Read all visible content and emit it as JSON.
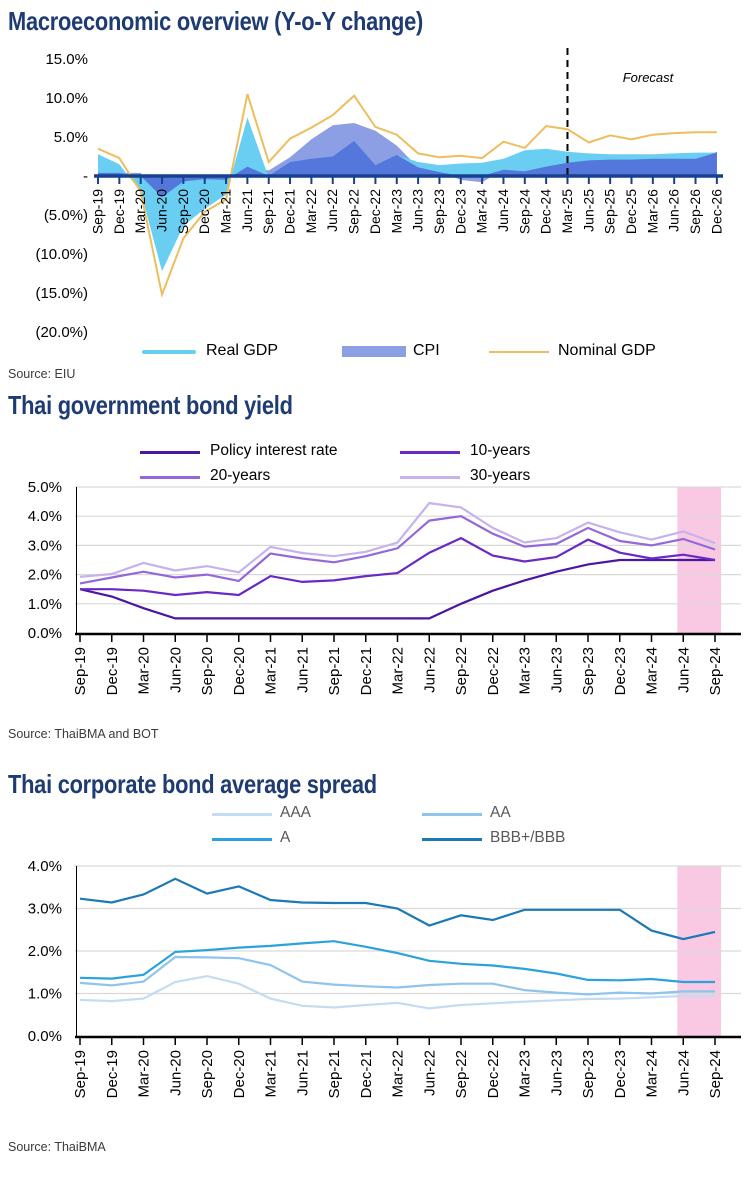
{
  "charts": [
    {
      "title": "Macroeconomic overview (Y-o-Y change)",
      "source": "Source: EIU",
      "forecast_label": "Forecast",
      "forecast_at": "Mar-25",
      "legend": [
        {
          "label": "Real GDP"
        },
        {
          "label": "CPI"
        },
        {
          "label": "Nominal GDP"
        }
      ]
    },
    {
      "title": "Thai government bond yield",
      "source": "Source: ThaiBMA and BOT",
      "legend": [
        {
          "label": "Policy interest rate"
        },
        {
          "label": "10-years"
        },
        {
          "label": "20-years"
        },
        {
          "label": "30-years"
        }
      ]
    },
    {
      "title": "Thai corporate bond average spread",
      "source": "Source: ThaiBMA",
      "legend": [
        {
          "label": "AAA"
        },
        {
          "label": "AA"
        },
        {
          "label": "A"
        },
        {
          "label": "BBB+/BBB"
        }
      ]
    }
  ],
  "chart_data": [
    {
      "type": "area+line",
      "title": "Macroeconomic overview (Y-o-Y change)",
      "categories": [
        "Sep-19",
        "Dec-19",
        "Mar-20",
        "Jun-20",
        "Sep-20",
        "Dec-20",
        "Mar-21",
        "Jun-21",
        "Sep-21",
        "Dec-21",
        "Mar-22",
        "Jun-22",
        "Sep-22",
        "Dec-22",
        "Mar-23",
        "Jun-23",
        "Sep-23",
        "Dec-23",
        "Mar-24",
        "Jun-24",
        "Sep-24",
        "Dec-24",
        "Mar-25",
        "Jun-25",
        "Sep-25",
        "Dec-25",
        "Mar-26",
        "Jun-26",
        "Sep-26",
        "Dec-26"
      ],
      "series": [
        {
          "name": "Real GDP",
          "type": "area",
          "color": "#6ACEF2",
          "values": [
            2.8,
            1.5,
            -2.0,
            -12.2,
            -6.4,
            -4.2,
            -2.4,
            7.5,
            -0.2,
            1.8,
            2.2,
            2.5,
            4.5,
            1.4,
            2.7,
            1.8,
            1.4,
            1.6,
            1.7,
            2.2,
            3.3,
            3.5,
            3.1,
            2.9,
            2.8,
            2.8,
            2.8,
            2.9,
            3.0,
            3.0
          ]
        },
        {
          "name": "CPI",
          "type": "area",
          "color": "#8C9FE4",
          "values": [
            0.4,
            0.4,
            0.4,
            -2.7,
            -0.7,
            -0.4,
            -0.5,
            1.2,
            0.7,
            2.4,
            4.7,
            6.5,
            6.8,
            5.8,
            3.9,
            1.1,
            0.5,
            -0.5,
            -0.8,
            0.8,
            0.6,
            1.2,
            1.7,
            2.0,
            2.1,
            2.1,
            2.2,
            2.2,
            2.2,
            3.1
          ]
        },
        {
          "name": "Nominal GDP",
          "type": "line",
          "color": "#EDBE5E",
          "values": [
            3.5,
            2.3,
            -2.0,
            -15.2,
            -8.0,
            -4.6,
            -3.0,
            10.5,
            1.8,
            4.8,
            6.2,
            7.8,
            10.3,
            6.3,
            5.3,
            2.9,
            2.4,
            2.6,
            2.3,
            4.4,
            3.6,
            6.4,
            6.0,
            4.3,
            5.2,
            4.7,
            5.3,
            5.5,
            5.6,
            5.6
          ]
        }
      ],
      "overlap_color": "#5377DB",
      "axis_color": "#17418F",
      "ylim": [
        -20,
        15
      ],
      "yticks": [
        {
          "v": 15,
          "label": "15.0%"
        },
        {
          "v": 10,
          "label": "10.0%"
        },
        {
          "v": 5,
          "label": "5.0%"
        },
        {
          "v": 0,
          "label": "-"
        },
        {
          "v": -5,
          "label": "(5.0%)"
        },
        {
          "v": -10,
          "label": "(10.0%)"
        },
        {
          "v": -15,
          "label": "(15.0%)"
        },
        {
          "v": -20,
          "label": "(20.0%)"
        }
      ],
      "grid": false,
      "legend_position": "bottom",
      "forecast_divider_at": "Mar-25"
    },
    {
      "type": "line",
      "title": "Thai government bond yield",
      "categories": [
        "Sep-19",
        "Dec-19",
        "Mar-20",
        "Jun-20",
        "Sep-20",
        "Dec-20",
        "Mar-21",
        "Jun-21",
        "Sep-21",
        "Dec-21",
        "Mar-22",
        "Jun-22",
        "Sep-22",
        "Dec-22",
        "Mar-23",
        "Jun-23",
        "Sep-23",
        "Dec-23",
        "Mar-24",
        "Jun-24",
        "Sep-24"
      ],
      "series": [
        {
          "name": "Policy interest rate",
          "color": "#4B16A0",
          "values": [
            1.5,
            1.25,
            0.85,
            0.5,
            0.5,
            0.5,
            0.5,
            0.5,
            0.5,
            0.5,
            0.5,
            0.5,
            1.0,
            1.45,
            1.8,
            2.1,
            2.35,
            2.5,
            2.5,
            2.5,
            2.5
          ]
        },
        {
          "name": "10-years",
          "color": "#6929C4",
          "values": [
            1.5,
            1.5,
            1.45,
            1.3,
            1.4,
            1.3,
            1.95,
            1.75,
            1.8,
            1.95,
            2.05,
            2.75,
            3.25,
            2.65,
            2.45,
            2.6,
            3.2,
            2.75,
            2.55,
            2.68,
            2.5
          ]
        },
        {
          "name": "20-years",
          "color": "#9468D8",
          "values": [
            1.7,
            1.9,
            2.1,
            1.9,
            2.0,
            1.78,
            2.72,
            2.55,
            2.42,
            2.63,
            2.9,
            3.85,
            4.0,
            3.4,
            2.96,
            3.05,
            3.6,
            3.15,
            3.0,
            3.22,
            2.86
          ]
        },
        {
          "name": "30-years",
          "color": "#C6B3EC",
          "values": [
            1.92,
            2.02,
            2.4,
            2.14,
            2.29,
            2.08,
            2.95,
            2.74,
            2.63,
            2.78,
            3.1,
            4.45,
            4.3,
            3.6,
            3.1,
            3.25,
            3.78,
            3.45,
            3.2,
            3.48,
            3.08
          ]
        }
      ],
      "ylim": [
        0,
        5
      ],
      "yticks": [
        {
          "v": 5,
          "label": "5.0%"
        },
        {
          "v": 4,
          "label": "4.0%"
        },
        {
          "v": 3,
          "label": "3.0%"
        },
        {
          "v": 2,
          "label": "2.0%"
        },
        {
          "v": 1,
          "label": "1.0%"
        },
        {
          "v": 0,
          "label": "0.0%"
        }
      ],
      "grid": true,
      "gridline_color": "#D9D9D9",
      "highlight": {
        "from": "Jun-24",
        "to": "Sep-24",
        "color": "#F9C8E3"
      }
    },
    {
      "type": "line",
      "title": "Thai corporate bond average spread",
      "categories": [
        "Sep-19",
        "Dec-19",
        "Mar-20",
        "Jun-20",
        "Sep-20",
        "Dec-20",
        "Mar-21",
        "Jun-21",
        "Sep-21",
        "Dec-21",
        "Mar-22",
        "Jun-22",
        "Sep-22",
        "Dec-22",
        "Mar-23",
        "Jun-23",
        "Sep-23",
        "Dec-23",
        "Mar-24",
        "Jun-24",
        "Sep-24"
      ],
      "series": [
        {
          "name": "AAA",
          "color": "#C3DCF2",
          "values": [
            0.85,
            0.82,
            0.88,
            1.27,
            1.41,
            1.23,
            0.88,
            0.71,
            0.67,
            0.73,
            0.78,
            0.65,
            0.73,
            0.77,
            0.81,
            0.84,
            0.87,
            0.88,
            0.91,
            0.94,
            0.95
          ]
        },
        {
          "name": "AA",
          "color": "#8FC4EC",
          "values": [
            1.25,
            1.19,
            1.28,
            1.86,
            1.85,
            1.83,
            1.67,
            1.28,
            1.21,
            1.17,
            1.14,
            1.2,
            1.23,
            1.23,
            1.08,
            1.02,
            0.98,
            1.02,
            1.0,
            1.05,
            1.05
          ]
        },
        {
          "name": "A",
          "color": "#2BA2DC",
          "values": [
            1.37,
            1.35,
            1.44,
            1.98,
            2.02,
            2.08,
            2.12,
            2.18,
            2.23,
            2.1,
            1.95,
            1.77,
            1.7,
            1.66,
            1.58,
            1.47,
            1.32,
            1.31,
            1.34,
            1.27,
            1.27
          ]
        },
        {
          "name": "BBB+/BBB",
          "color": "#1B79B5",
          "values": [
            3.23,
            3.14,
            3.33,
            3.7,
            3.35,
            3.52,
            3.2,
            3.14,
            3.13,
            3.13,
            3.0,
            2.6,
            2.84,
            2.73,
            2.97,
            2.97,
            2.97,
            2.97,
            2.48,
            2.28,
            2.45
          ]
        }
      ],
      "ylim": [
        0,
        4
      ],
      "yticks": [
        {
          "v": 4,
          "label": "4.0%"
        },
        {
          "v": 3,
          "label": "3.0%"
        },
        {
          "v": 2,
          "label": "2.0%"
        },
        {
          "v": 1,
          "label": "1.0%"
        },
        {
          "v": 0,
          "label": "0.0%"
        }
      ],
      "grid": true,
      "gridline_color": "#D9D9D9",
      "highlight": {
        "from": "Jun-24",
        "to": "Sep-24",
        "color": "#F9C8E3"
      }
    }
  ]
}
